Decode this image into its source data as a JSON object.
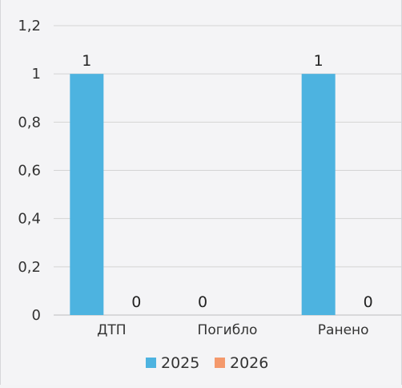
{
  "chart_data": {
    "type": "bar",
    "categories": [
      "ДТП",
      "Погибло",
      "Ранено"
    ],
    "series": [
      {
        "name": "2025",
        "values": [
          1,
          0,
          1
        ],
        "color": "#4db3e0"
      },
      {
        "name": "2026",
        "values": [
          0,
          0,
          0
        ],
        "color": "#f4996c"
      }
    ],
    "data_labels": {
      "2025": [
        "1",
        "0",
        "1"
      ],
      "2026": [
        "0",
        "",
        "0"
      ]
    },
    "y_ticks": [
      "0",
      "0,2",
      "0,4",
      "0,6",
      "0,8",
      "1",
      "1,2"
    ],
    "y_tick_values": [
      0,
      0.2,
      0.4,
      0.6,
      0.8,
      1,
      1.2
    ],
    "ylim": [
      0,
      1.2
    ],
    "grid": true,
    "legend_position": "bottom"
  }
}
